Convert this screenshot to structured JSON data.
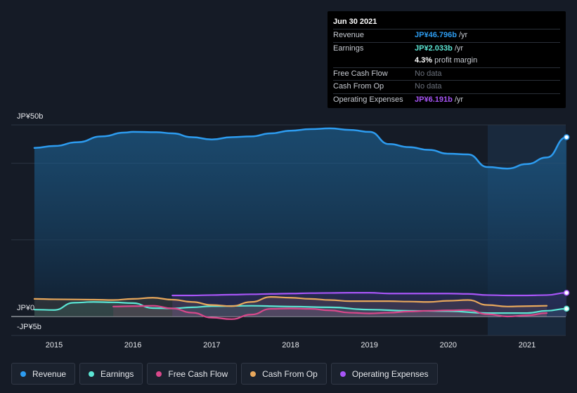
{
  "tooltip": {
    "date": "Jun 30 2021",
    "rows": [
      {
        "label": "Revenue",
        "value": "JP¥46.796b",
        "unit": "/yr",
        "color": "#2d9cf0"
      },
      {
        "label": "Earnings",
        "value": "JP¥2.033b",
        "unit": "/yr",
        "color": "#5ce6d4"
      },
      {
        "label": "",
        "value": "4.3%",
        "unit": "profit margin",
        "color": "#ffffff"
      },
      {
        "label": "Free Cash Flow",
        "value": "No data",
        "unit": "",
        "color": "#6b717c"
      },
      {
        "label": "Cash From Op",
        "value": "No data",
        "unit": "",
        "color": "#6b717c"
      },
      {
        "label": "Operating Expenses",
        "value": "JP¥6.191b",
        "unit": "/yr",
        "color": "#a855f7"
      }
    ]
  },
  "legend": [
    {
      "label": "Revenue",
      "color": "#2d9cf0"
    },
    {
      "label": "Earnings",
      "color": "#5ce6d4"
    },
    {
      "label": "Free Cash Flow",
      "color": "#d9488b"
    },
    {
      "label": "Cash From Op",
      "color": "#e8a85c"
    },
    {
      "label": "Operating Expenses",
      "color": "#a855f7"
    }
  ],
  "chart_data": {
    "type": "area",
    "ylim": [
      -5,
      50
    ],
    "y_tick_labels": [
      {
        "value": 50,
        "label": "JP¥50b"
      },
      {
        "value": 0,
        "label": "JP¥0"
      },
      {
        "value": -5,
        "label": "-JP¥5b"
      }
    ],
    "x_ticks": [
      {
        "value": 2015,
        "label": "2015"
      },
      {
        "value": 2016,
        "label": "2016"
      },
      {
        "value": 2017,
        "label": "2017"
      },
      {
        "value": 2018,
        "label": "2018"
      },
      {
        "value": 2019,
        "label": "2019"
      },
      {
        "value": 2020,
        "label": "2020"
      },
      {
        "value": 2021,
        "label": "2021"
      }
    ],
    "xlim": [
      2014.6,
      2021.5
    ],
    "highlight_start": 2020.5,
    "series": [
      {
        "name": "Revenue",
        "color": "#2d9cf0",
        "x": [
          2014.75,
          2015.0,
          2015.3,
          2015.6,
          2015.9,
          2016.0,
          2016.3,
          2016.5,
          2016.75,
          2017.0,
          2017.25,
          2017.5,
          2017.75,
          2018.0,
          2018.25,
          2018.5,
          2018.75,
          2019.0,
          2019.25,
          2019.5,
          2019.75,
          2020.0,
          2020.25,
          2020.5,
          2020.75,
          2021.0,
          2021.25,
          2021.5
        ],
        "y": [
          44.0,
          44.5,
          45.5,
          47.0,
          48.0,
          48.2,
          48.1,
          47.8,
          46.8,
          46.2,
          46.8,
          47.0,
          47.8,
          48.5,
          48.9,
          49.1,
          48.7,
          48.2,
          45.0,
          44.2,
          43.5,
          42.5,
          42.3,
          39.0,
          38.6,
          39.8,
          41.5,
          46.8
        ]
      },
      {
        "name": "Earnings",
        "color": "#5ce6d4",
        "x": [
          2014.75,
          2015.0,
          2015.25,
          2015.5,
          2015.75,
          2016.0,
          2016.25,
          2016.5,
          2016.75,
          2017.0,
          2017.5,
          2018.0,
          2018.5,
          2019.0,
          2019.5,
          2020.0,
          2020.5,
          2021.0,
          2021.25,
          2021.5
        ],
        "y": [
          1.8,
          1.7,
          3.6,
          3.8,
          3.7,
          3.5,
          2.2,
          2.1,
          2.4,
          2.7,
          2.8,
          2.6,
          2.4,
          1.8,
          1.5,
          1.4,
          0.9,
          0.9,
          1.5,
          2.033
        ]
      },
      {
        "name": "Free Cash Flow",
        "color": "#d9488b",
        "x": [
          2015.75,
          2016.0,
          2016.25,
          2016.5,
          2016.75,
          2017.0,
          2017.25,
          2017.5,
          2017.75,
          2018.0,
          2018.25,
          2018.5,
          2018.75,
          2019.0,
          2019.25,
          2019.5,
          2019.75,
          2020.0,
          2020.25,
          2020.5,
          2020.75,
          2021.0,
          2021.25
        ],
        "y": [
          2.6,
          2.7,
          2.8,
          2.1,
          1.0,
          -0.3,
          -0.7,
          0.5,
          2.0,
          2.1,
          2.0,
          1.6,
          1.0,
          0.8,
          1.0,
          1.3,
          1.5,
          1.6,
          1.7,
          0.6,
          0.0,
          0.3,
          0.9
        ]
      },
      {
        "name": "Cash From Op",
        "color": "#e8a85c",
        "x": [
          2014.75,
          2015.0,
          2015.5,
          2015.75,
          2016.0,
          2016.25,
          2016.5,
          2016.75,
          2017.0,
          2017.25,
          2017.5,
          2017.75,
          2018.0,
          2018.25,
          2018.5,
          2018.75,
          2019.0,
          2019.25,
          2019.5,
          2019.75,
          2020.0,
          2020.25,
          2020.5,
          2020.75,
          2021.0,
          2021.25
        ],
        "y": [
          4.6,
          4.5,
          4.4,
          4.3,
          4.6,
          4.9,
          4.4,
          3.8,
          3.0,
          2.7,
          3.8,
          5.1,
          4.9,
          4.6,
          4.3,
          4.0,
          4.0,
          4.0,
          3.9,
          3.8,
          4.1,
          4.3,
          3.0,
          2.6,
          2.7,
          2.8
        ]
      },
      {
        "name": "Operating Expenses",
        "color": "#a855f7",
        "x": [
          2016.5,
          2016.75,
          2017.0,
          2017.25,
          2017.5,
          2017.75,
          2018.0,
          2018.25,
          2018.5,
          2018.75,
          2019.0,
          2019.25,
          2019.5,
          2019.75,
          2020.0,
          2020.25,
          2020.5,
          2020.75,
          2021.0,
          2021.25,
          2021.5
        ],
        "y": [
          5.5,
          5.5,
          5.6,
          5.7,
          5.8,
          5.9,
          6.0,
          6.1,
          6.15,
          6.2,
          6.2,
          6.0,
          6.0,
          6.0,
          6.0,
          5.9,
          5.6,
          5.5,
          5.5,
          5.6,
          6.191
        ]
      }
    ]
  }
}
